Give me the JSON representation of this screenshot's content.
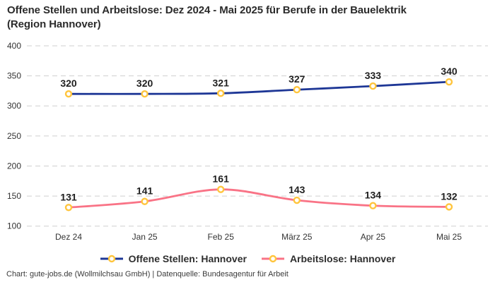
{
  "title": {
    "line1": "Offene Stellen und Arbeitslose: Dez 2024 - Mai 2025 für Berufe in der Bauelektrik",
    "line2": "(Region Hannover)"
  },
  "legend": {
    "items": [
      {
        "label": "Offene Stellen: Hannover"
      },
      {
        "label": "Arbeitslose: Hannover"
      }
    ]
  },
  "footer": {
    "text": "Chart: gute-jobs.de (Wollmilchsau GmbH) | Datenquelle: Bundesagentur für Arbeit"
  },
  "colors": {
    "offene_stellen_line": "#1E3796",
    "arbeitslose_line": "#F97386",
    "marker_ring": "#FFC53D",
    "grid": "#CFCFCF",
    "background": "#FFFFFF"
  },
  "chart_data": {
    "type": "line",
    "title": "Offene Stellen und Arbeitslose: Dez 2024 - Mai 2025 für Berufe in der Bauelektrik (Region Hannover)",
    "categories": [
      "Dez 24",
      "Jan 25",
      "Feb 25",
      "März 25",
      "Apr 25",
      "Mai 25"
    ],
    "series": [
      {
        "id": "offene-stellen",
        "name": "Offene Stellen: Hannover",
        "color": "#1E3796",
        "values": [
          320,
          320,
          321,
          327,
          333,
          340
        ]
      },
      {
        "id": "arbeitslose",
        "name": "Arbeitslose: Hannover",
        "color": "#F97386",
        "values": [
          131,
          141,
          161,
          143,
          134,
          132
        ]
      }
    ],
    "yticks": [
      400,
      350,
      300,
      250,
      200,
      150,
      100
    ],
    "ylim": [
      100,
      400
    ],
    "grid": "horizontal-dashed",
    "legend_position": "bottom",
    "data_labels": true,
    "marker_style": "yellow-ring-white-fill"
  }
}
